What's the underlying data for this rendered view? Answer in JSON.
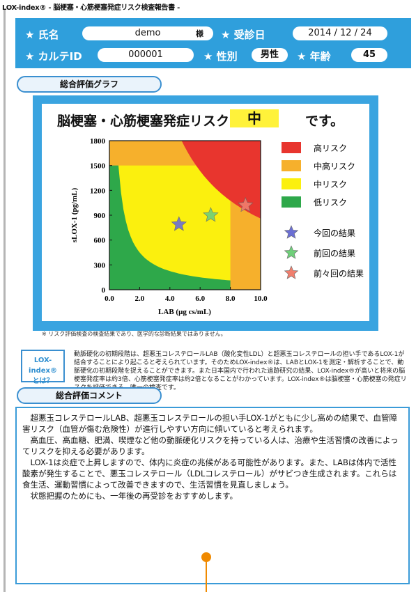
{
  "document": {
    "title": "LOX-index® - 脳梗塞・心筋梗塞発症リスク検査報告書 -",
    "note": "※ リスク評価検査の検査結果であり、医学的な診断結果ではありません。"
  },
  "patient": {
    "name_label": "★ 氏名",
    "name": "demo",
    "honorific": "様",
    "exam_date_label": "★ 受診日",
    "exam_date": "2014 / 12 / 24",
    "karte_label": "★ カルテID",
    "karte_id": "000001",
    "sex_label": "★ 性別",
    "sex": "男性",
    "age_label": "★ 年齢",
    "age": "45"
  },
  "sections": {
    "graph_title": "総合評価グラフ",
    "comment_title": "総合評価コメント"
  },
  "graph": {
    "headline": "脳梗塞・心筋梗塞発症リスクは",
    "risk_level": "中",
    "suffix": "です。"
  },
  "chart_data": {
    "type": "scatter",
    "xlabel": "LAB (μg cs/mL)",
    "ylabel": "sLOX-1 (pg/mL)",
    "xlim": [
      0,
      10
    ],
    "ylim": [
      0,
      1800
    ],
    "xticks": [
      "0.0",
      "2.0",
      "4.0",
      "6.0",
      "8.0",
      "10.0"
    ],
    "yticks": [
      "0",
      "300",
      "600",
      "900",
      "1200",
      "1500",
      "1800"
    ],
    "risk_zones": [
      {
        "label": "高リスク",
        "color": "#e8352e"
      },
      {
        "label": "中高リスク",
        "color": "#f6b02c"
      },
      {
        "label": "中リスク",
        "color": "#fbf00e"
      },
      {
        "label": "低リスク",
        "color": "#2ea84a"
      }
    ],
    "results": [
      {
        "label": "今回の結果",
        "x": 4.6,
        "y": 790,
        "color": "#6b6fd4"
      },
      {
        "label": "前回の結果",
        "x": 6.7,
        "y": 900,
        "color": "#6fcf7a"
      },
      {
        "label": "前々回の結果",
        "x": 9.0,
        "y": 1020,
        "color": "#f07f6e"
      }
    ]
  },
  "lox_box": {
    "line1": "LOX-index®",
    "line2": "とは？"
  },
  "explanation": "動脈硬化の初期段階は、超悪玉コレステロールLAB（酸化変性LDL）と超悪玉コレステロールの担い手であるLOX-1が結合することにより起こると考えられています。そのためLOX-index®は、LABとLOX-1を測定・解析することで、動脈硬化の初期段階を捉えることができます。また日本国内で行われた追跡研究の結果、LOX-index®が高いと将来の脳梗塞発症率は約3倍、心筋梗塞発症率は約2倍となることがわかっています。LOX-index®は脳梗塞・心筋梗塞の発症リスクを評価できる、唯一の検査です。",
  "comment": {
    "p1": "超悪玉コレステロールLAB、超悪玉コレステロールの担い手LOX-1がともに少し高めの結果で、血管障害リスク（血管が傷む危険性）が進行しやすい方向に傾いていると考えられます。",
    "p2": "高血圧、高血糖、肥満、喫煙など他の動脈硬化リスクを持っている人は、治療や生活習慣の改善によってリスクを抑える必要があります。",
    "p3": "LOX-1は炎症で上昇しますので、体内に炎症の兆候がある可能性があります。また、LABは体内で活性酸素が発生することで、悪玉コレステロール（LDLコレステロール）がサビつき生成されます。これらは食生活、運動習慣によって改善できますので、生活習慣を見直しましょう。",
    "p4": "状態把握のためにも、一年後の再受診をおすすめします。"
  }
}
